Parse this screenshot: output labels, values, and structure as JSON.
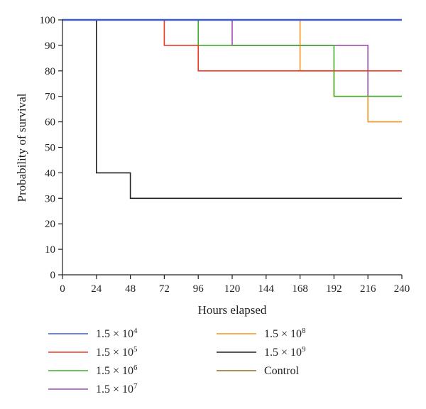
{
  "chart_data": {
    "type": "line",
    "step": true,
    "xlabel": "Hours elapsed",
    "ylabel": "Probability of survival",
    "xlim": [
      0,
      240
    ],
    "ylim": [
      0,
      100
    ],
    "xticks": [
      0,
      24,
      48,
      72,
      96,
      120,
      144,
      168,
      192,
      216,
      240
    ],
    "yticks": [
      0,
      10,
      20,
      30,
      40,
      50,
      60,
      70,
      80,
      90,
      100
    ],
    "grid": false,
    "legend_position": "bottom",
    "series": [
      {
        "name": "1.5 × 10",
        "exp": "4",
        "color": "#3b5bd6",
        "x": [
          0,
          240
        ],
        "y": [
          100,
          100
        ]
      },
      {
        "name": "1.5 × 10",
        "exp": "5",
        "color": "#ee3a23",
        "x": [
          0,
          72,
          96,
          240
        ],
        "y": [
          100,
          90,
          80,
          80
        ]
      },
      {
        "name": "1.5 × 10",
        "exp": "6",
        "color": "#3fae2a",
        "x": [
          0,
          96,
          192,
          240
        ],
        "y": [
          100,
          90,
          70,
          70
        ]
      },
      {
        "name": "1.5 × 10",
        "exp": "7",
        "color": "#9f4fb3",
        "x": [
          0,
          120,
          216,
          240
        ],
        "y": [
          100,
          90,
          70,
          70
        ]
      },
      {
        "name": "1.5 × 10",
        "exp": "8",
        "color": "#f7941d",
        "x": [
          0,
          168,
          192,
          216,
          240
        ],
        "y": [
          100,
          80,
          70,
          60,
          60
        ]
      },
      {
        "name": "1.5 × 10",
        "exp": "9",
        "color": "#231f20",
        "x": [
          0,
          24,
          48,
          240
        ],
        "y": [
          100,
          40,
          30,
          30
        ]
      },
      {
        "name": "Control",
        "exp": "",
        "color": "#8c6d1f",
        "x": [
          0,
          240
        ],
        "y": [
          100,
          100
        ]
      }
    ]
  }
}
